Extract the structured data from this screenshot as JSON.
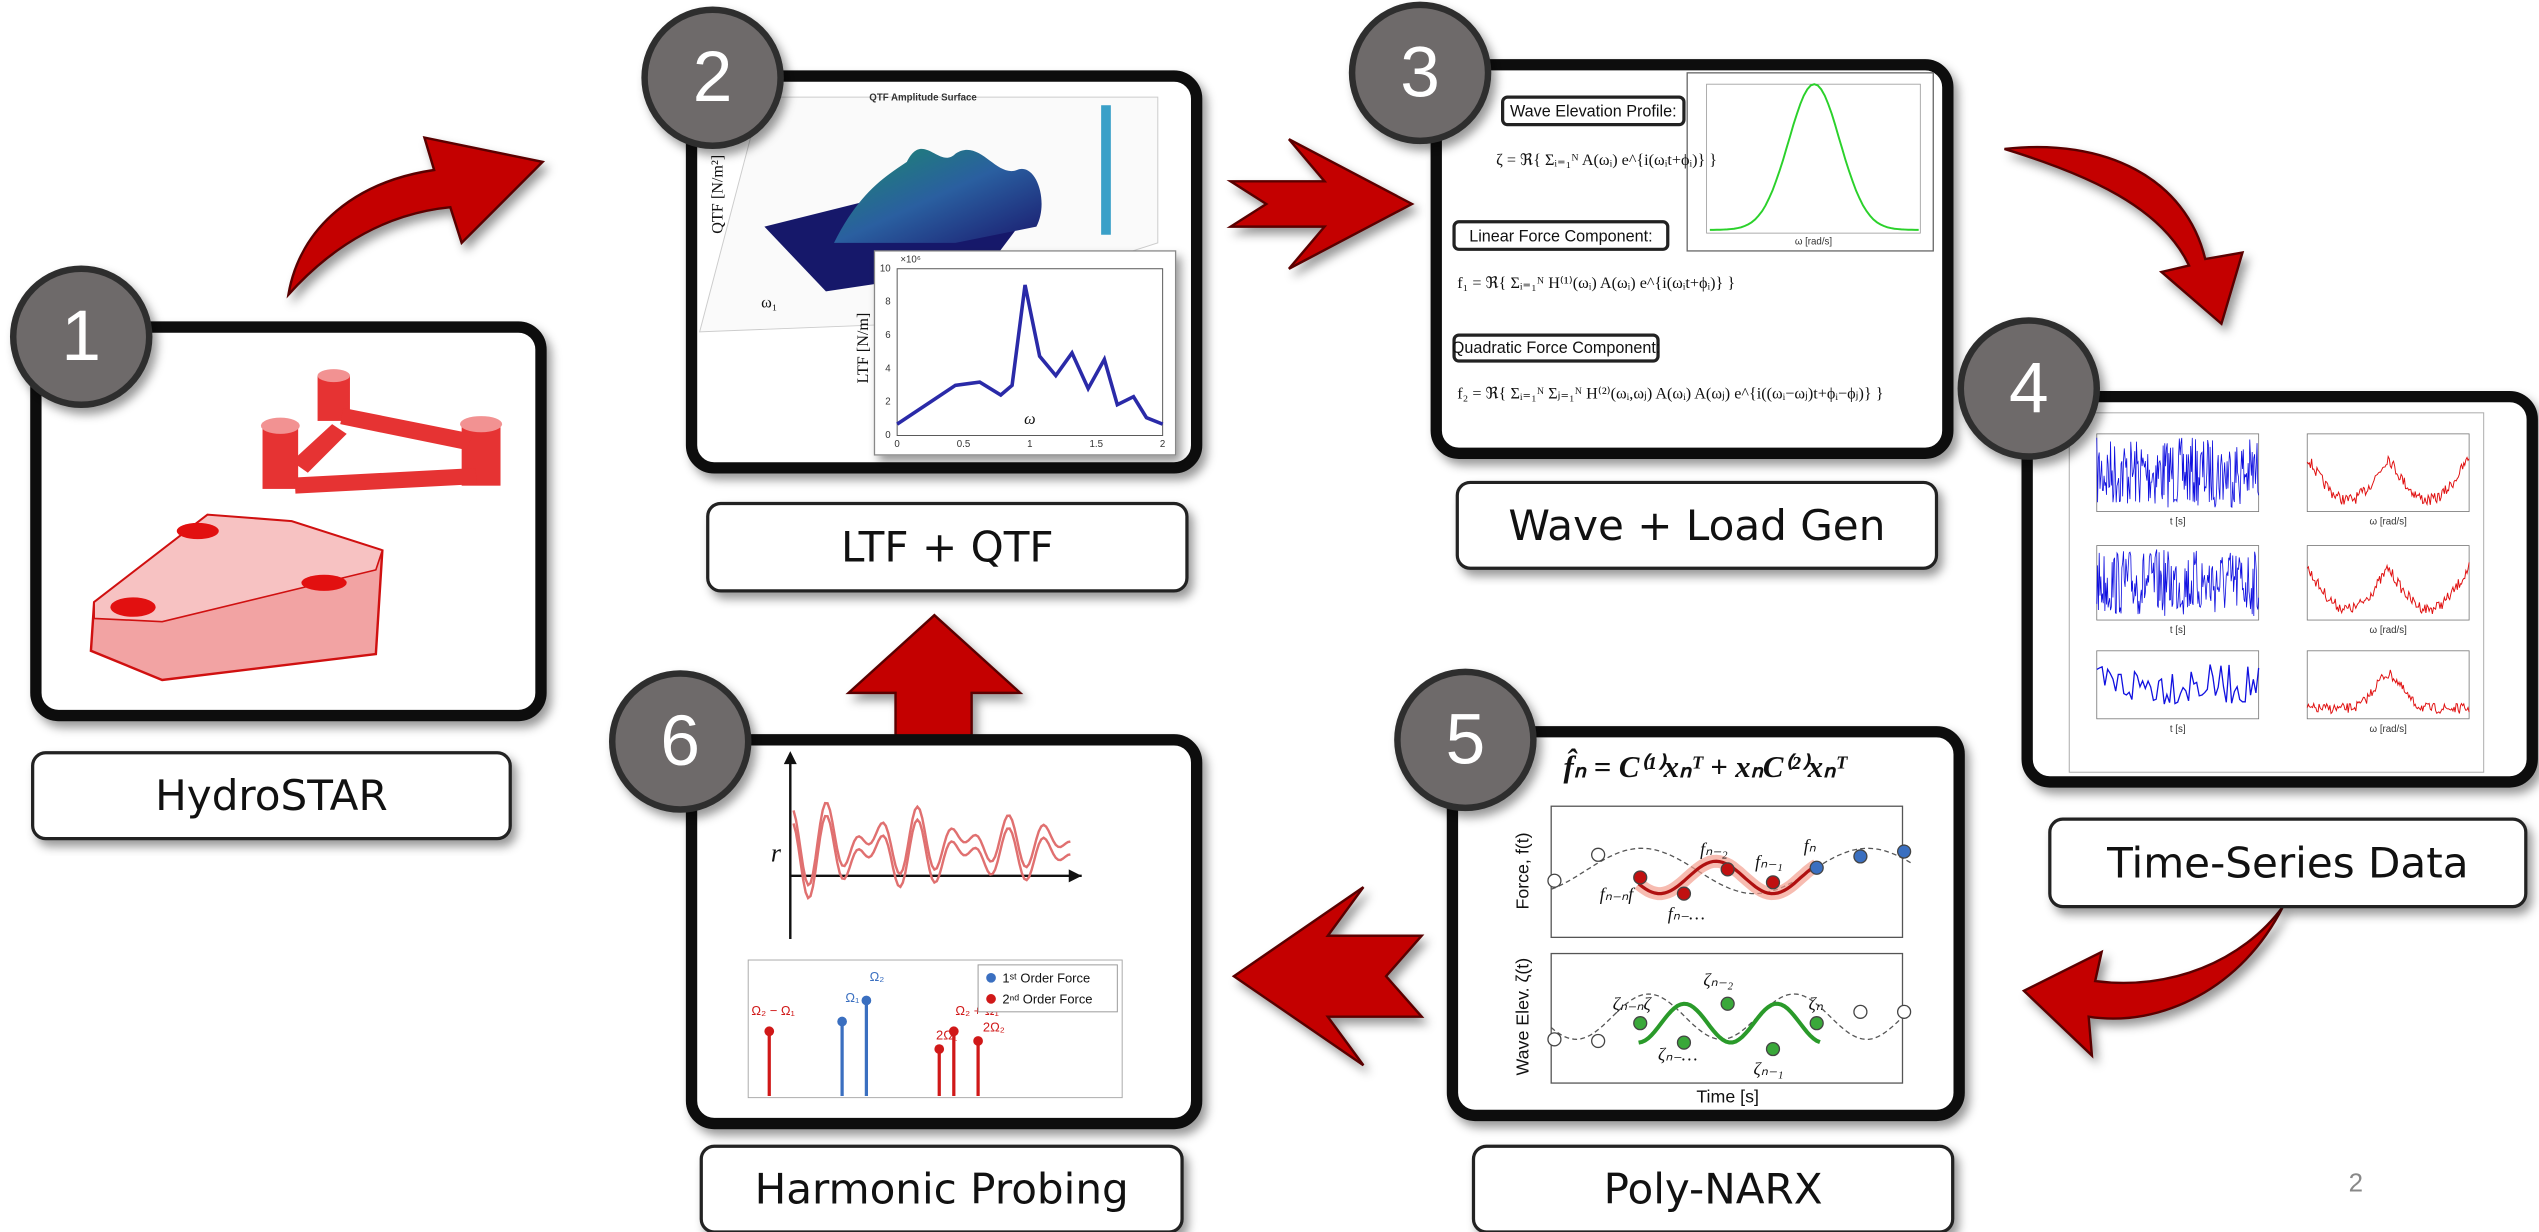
{
  "steps": [
    {
      "number": "1",
      "label": "HydroSTAR"
    },
    {
      "number": "2",
      "label": "LTF + QTF"
    },
    {
      "number": "3",
      "label": "Wave + Load Gen"
    },
    {
      "number": "4",
      "label": "Time-Series Data"
    },
    {
      "number": "5",
      "label": "Poly-NARX"
    },
    {
      "number": "6",
      "label": "Harmonic Probing"
    }
  ],
  "page_number": "2",
  "ltf_qtf": {
    "surface_title": "QTF Amplitude Surface",
    "surface_z_label": "QTF [N/m²]",
    "surface_x_label": "ω₁",
    "ltf_y_label": "LTF [N/m]",
    "ltf_x_label": "ω",
    "ltf_scale": "×10⁶",
    "ltf_x_ticks": [
      "0",
      "0.5",
      "1",
      "1.5",
      "2"
    ],
    "ltf_y_ticks": [
      "0",
      "2",
      "4",
      "6",
      "8",
      "10"
    ]
  },
  "wave_load": {
    "wave_heading": "Wave Elevation Profile:",
    "wave_formula": "ζ = ℜ{ Σᵢ₌₁ᴺ A(ωᵢ) e^{i(ωᵢt+ϕᵢ)} }",
    "linear_heading": "Linear Force Component:",
    "linear_formula": "f₁ = ℜ{ Σᵢ₌₁ᴺ H⁽¹⁾(ωᵢ) A(ωᵢ) e^{i(ωᵢt+ϕᵢ)} }",
    "quadratic_heading": "Quadratic Force Component:",
    "quadratic_formula": "f₂ = ℜ{ Σᵢ₌₁ᴺ Σⱼ₌₁ᴺ H⁽²⁾(ωᵢ,ωⱼ) A(ωᵢ) A(ωⱼ) e^{i((ωᵢ−ωⱼ)t+ϕᵢ−ϕⱼ)} }",
    "spectrum_x_label": "ω [rad/s]"
  },
  "time_series": {
    "time_label": "t [s]",
    "freq_label": "ω [rad/s]"
  },
  "poly_narx": {
    "formula": "f̂ₙ = C⁽¹⁾xₙᵀ + xₙC⁽²⁾xₙᵀ",
    "force_label": "Force, f(t)",
    "wave_label": "Wave Elev. ζ(t)",
    "time_label": "Time [s]",
    "force_terms": [
      "fₙ₋ₙf",
      "fₙ₋…",
      "fₙ₋₂",
      "fₙ₋₁",
      "fₙ"
    ],
    "wave_terms": [
      "ζₙ₋ₙζ",
      "ζₙ₋…",
      "ζₙ₋₂",
      "ζₙ₋₁",
      "ζₙ"
    ]
  },
  "harmonic": {
    "response_label": "r",
    "legend": [
      "1ˢᵗ Order Force",
      "2ⁿᵈ Order Force"
    ],
    "stem_labels": [
      "Ω₂ − Ω₁",
      "Ω₁",
      "Ω₂",
      "2Ω₁",
      "Ω₂ + Ω₁",
      "2Ω₂"
    ]
  }
}
